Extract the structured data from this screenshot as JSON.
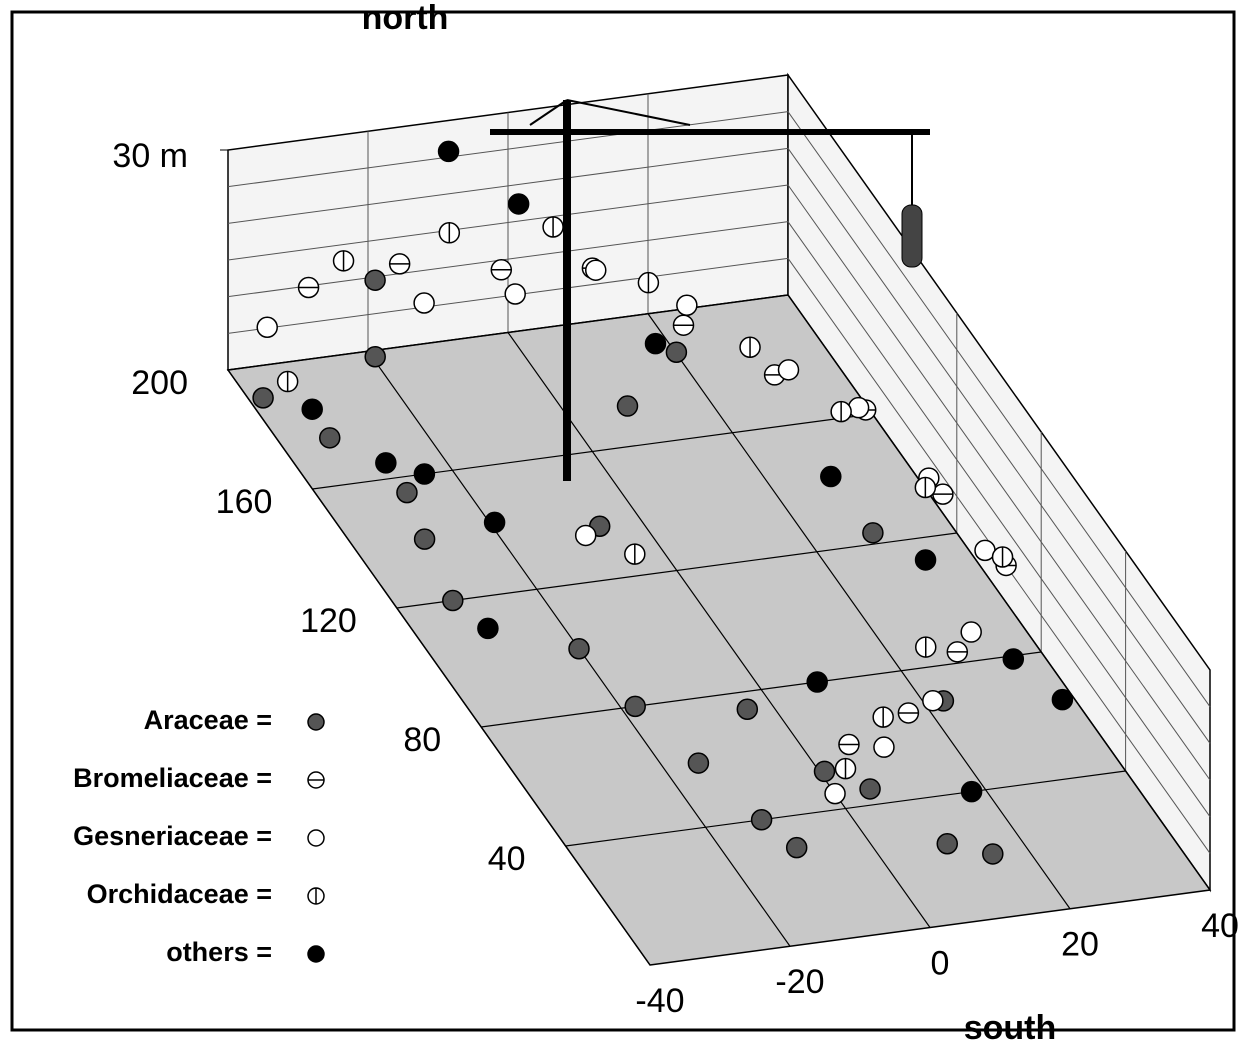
{
  "chart_data": {
    "type": "scatter3d",
    "north_label": "north",
    "south_label": "south",
    "xlim": [
      -40,
      40
    ],
    "xticks": [
      -40,
      -20,
      0,
      20,
      40
    ],
    "ylim": [
      0,
      200
    ],
    "yticks": [
      40,
      80,
      120,
      160,
      200
    ],
    "zlim": [
      0,
      30
    ],
    "zticks": [
      {
        "value": 30,
        "label": "30 m"
      }
    ],
    "series": [
      {
        "name": "Araceae =",
        "color": "#555555",
        "marker": "filled",
        "x": [
          -38,
          -33,
          -28,
          -30,
          -32,
          -20,
          -18,
          -15,
          -12,
          -10,
          -5,
          0,
          5,
          10,
          15,
          20,
          25,
          -25,
          -8,
          2,
          12,
          -22
        ],
        "y": [
          190,
          175,
          155,
          140,
          120,
          100,
          80,
          60,
          40,
          30,
          70,
          50,
          45,
          25,
          20,
          60,
          110,
          180,
          130,
          150,
          160,
          190
        ],
        "z": [
          0,
          0,
          0,
          0,
          0,
          0,
          0,
          0,
          0,
          0,
          2,
          1,
          0,
          0,
          0,
          4,
          6,
          8,
          3,
          10,
          12,
          14
        ]
      },
      {
        "name": "Bromeliaceae =",
        "color": "#ffffff",
        "marker": "hline",
        "x": [
          -30,
          -20,
          -10,
          0,
          10,
          20,
          30,
          35,
          38,
          25,
          15,
          5
        ],
        "y": [
          195,
          185,
          170,
          160,
          150,
          140,
          130,
          110,
          90,
          70,
          60,
          55
        ],
        "z": [
          12,
          18,
          22,
          25,
          20,
          16,
          14,
          10,
          8,
          6,
          3,
          2
        ]
      },
      {
        "name": "Gesneriaceae =",
        "color": "#ffffff",
        "marker": "open",
        "x": [
          -35,
          -15,
          -5,
          5,
          15,
          25,
          32,
          36,
          38,
          30,
          20,
          10,
          0,
          -10
        ],
        "y": [
          198,
          190,
          180,
          175,
          165,
          150,
          140,
          120,
          100,
          80,
          65,
          55,
          45,
          130
        ],
        "z": [
          6,
          10,
          14,
          18,
          16,
          12,
          10,
          8,
          6,
          4,
          2,
          1,
          0,
          2
        ]
      },
      {
        "name": "Orchidaceae =",
        "color": "#ffffff",
        "marker": "vline",
        "x": [
          -36,
          -25,
          -12,
          -2,
          8,
          18,
          28,
          34,
          39,
          22,
          12,
          3,
          -6
        ],
        "y": [
          185,
          195,
          188,
          172,
          160,
          145,
          135,
          115,
          95,
          75,
          62,
          50,
          120
        ],
        "z": [
          4,
          15,
          20,
          26,
          22,
          18,
          12,
          9,
          7,
          5,
          2,
          1,
          3
        ]
      },
      {
        "name": "others =",
        "color": "#000000",
        "marker": "filled",
        "x": [
          -34,
          -28,
          -24,
          -30,
          -10,
          -3,
          6,
          22,
          28,
          33,
          37,
          18,
          8,
          -20
        ],
        "y": [
          180,
          165,
          160,
          110,
          195,
          185,
          150,
          120,
          95,
          70,
          60,
          40,
          80,
          140
        ],
        "z": [
          2,
          0,
          0,
          0,
          28,
          24,
          18,
          10,
          8,
          4,
          2,
          0,
          0,
          1
        ]
      }
    ]
  }
}
